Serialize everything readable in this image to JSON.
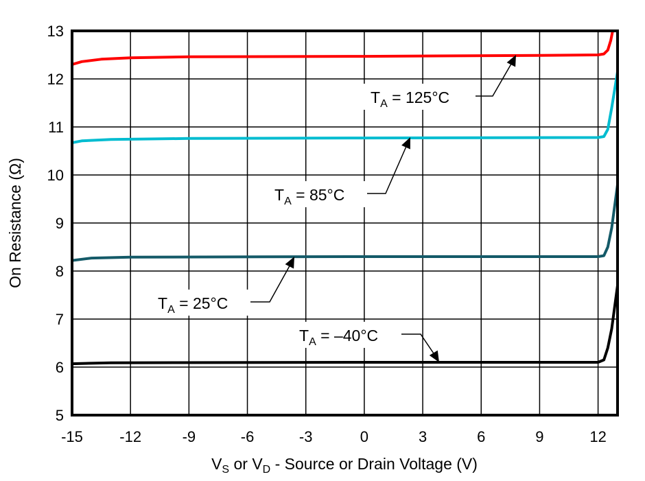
{
  "chart_data": {
    "type": "line",
    "title": "",
    "xlabel": {
      "parts": [
        [
          "V",
          ""
        ],
        [
          "S",
          "sub"
        ],
        [
          " or V",
          ""
        ],
        [
          "D",
          "sub"
        ],
        [
          " - Source or Drain Voltage (V)",
          ""
        ]
      ]
    },
    "ylabel": "On Resistance (Ω)",
    "xlim": [
      -15,
      13
    ],
    "ylim": [
      5,
      13
    ],
    "xticks": [
      -15,
      -12,
      -9,
      -6,
      -3,
      0,
      3,
      6,
      9,
      12
    ],
    "yticks": [
      5,
      6,
      7,
      8,
      9,
      10,
      11,
      12,
      13
    ],
    "grid": true,
    "legend": "none",
    "series": [
      {
        "name": "TA = 125°C",
        "color": "#ff0000",
        "points": [
          [
            -15,
            12.3
          ],
          [
            -14.5,
            12.36
          ],
          [
            -13.5,
            12.41
          ],
          [
            -12,
            12.44
          ],
          [
            -9,
            12.46
          ],
          [
            0,
            12.47
          ],
          [
            9,
            12.49
          ],
          [
            12,
            12.5
          ],
          [
            12.3,
            12.52
          ],
          [
            12.5,
            12.6
          ],
          [
            12.65,
            12.8
          ],
          [
            12.75,
            13
          ]
        ]
      },
      {
        "name": "TA = 85°C",
        "color": "#00bcd0",
        "points": [
          [
            -15,
            10.67
          ],
          [
            -14.5,
            10.71
          ],
          [
            -13,
            10.74
          ],
          [
            -9,
            10.76
          ],
          [
            0,
            10.77
          ],
          [
            12,
            10.78
          ],
          [
            12.3,
            10.8
          ],
          [
            12.5,
            10.95
          ],
          [
            12.7,
            11.4
          ],
          [
            13,
            12.15
          ]
        ]
      },
      {
        "name": "TA = 25°C",
        "color": "#145a68",
        "points": [
          [
            -15,
            8.22
          ],
          [
            -14,
            8.27
          ],
          [
            -12,
            8.29
          ],
          [
            0,
            8.3
          ],
          [
            12,
            8.3
          ],
          [
            12.3,
            8.32
          ],
          [
            12.5,
            8.5
          ],
          [
            12.7,
            8.9
          ],
          [
            13,
            9.8
          ]
        ]
      },
      {
        "name": "TA = –40°C",
        "color": "#000000",
        "points": [
          [
            -15,
            6.07
          ],
          [
            -13,
            6.09
          ],
          [
            0,
            6.1
          ],
          [
            12,
            6.1
          ],
          [
            12.3,
            6.15
          ],
          [
            12.5,
            6.4
          ],
          [
            12.7,
            6.8
          ],
          [
            13,
            7.7
          ]
        ]
      }
    ],
    "annotations": [
      {
        "prefix": "T",
        "sub": "A",
        "suffix": " = 125°C"
      },
      {
        "prefix": "T",
        "sub": "A",
        "suffix": " = 85°C"
      },
      {
        "prefix": "T",
        "sub": "A",
        "suffix": " = 25°C"
      },
      {
        "prefix": "T",
        "sub": "A",
        "suffix": " = –40°C"
      }
    ]
  }
}
